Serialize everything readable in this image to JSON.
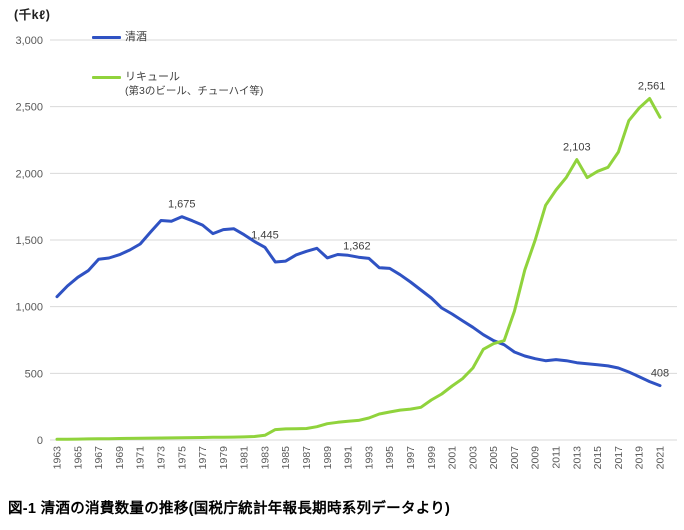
{
  "figure": {
    "unit_label": "(千kℓ)",
    "caption": "図-1 清酒の消費数量の推移(国税庁統計年報長期時系列データより)"
  },
  "legend": {
    "position": "inside-top-left",
    "items": [
      {
        "label": "清酒",
        "sublabel": "",
        "color": "#2f52c3"
      },
      {
        "label": "リキュール",
        "sublabel": "(第3のビール、チューハイ等)",
        "color": "#90d33c"
      }
    ]
  },
  "chart_data": {
    "type": "line",
    "title": "",
    "xlabel": "",
    "ylabel": "(千kℓ)",
    "ylim": [
      0,
      3000
    ],
    "grid": "horizontal",
    "grid_color": "#d9d9d9",
    "axis_text_color": "#595959",
    "data_label_color": "#404040",
    "y_ticks": [
      0,
      500,
      1000,
      1500,
      2000,
      2500,
      3000
    ],
    "y_tick_labels": [
      "0",
      "500",
      "1,000",
      "1,500",
      "2,000",
      "2,500",
      "3,000"
    ],
    "x": [
      1963,
      1964,
      1965,
      1966,
      1967,
      1968,
      1969,
      1970,
      1971,
      1972,
      1973,
      1974,
      1975,
      1976,
      1977,
      1978,
      1979,
      1980,
      1981,
      1982,
      1983,
      1984,
      1985,
      1986,
      1987,
      1988,
      1989,
      1990,
      1991,
      1992,
      1993,
      1994,
      1995,
      1996,
      1997,
      1998,
      1999,
      2000,
      2001,
      2002,
      2003,
      2004,
      2005,
      2006,
      2007,
      2008,
      2009,
      2010,
      2011,
      2012,
      2013,
      2014,
      2015,
      2016,
      2017,
      2018,
      2019,
      2020,
      2021
    ],
    "x_tick_labels": [
      "1963",
      "1965",
      "1967",
      "1969",
      "1971",
      "1973",
      "1975",
      "1977",
      "1979",
      "1981",
      "1983",
      "1985",
      "1987",
      "1989",
      "1991",
      "1993",
      "1995",
      "1997",
      "1999",
      "2001",
      "2003",
      "2005",
      "2007",
      "2009",
      "2011",
      "2013",
      "2015",
      "2017",
      "2019",
      "2021"
    ],
    "series": [
      {
        "name": "清酒",
        "key": "seishu",
        "color": "#2f52c3",
        "values": [
          1075,
          1155,
          1220,
          1270,
          1355,
          1365,
          1390,
          1425,
          1470,
          1560,
          1646,
          1640,
          1675,
          1645,
          1612,
          1548,
          1578,
          1585,
          1540,
          1489,
          1445,
          1335,
          1342,
          1388,
          1415,
          1438,
          1366,
          1391,
          1385,
          1371,
          1362,
          1292,
          1287,
          1240,
          1185,
          1125,
          1065,
          990,
          945,
          895,
          845,
          790,
          745,
          715,
          660,
          630,
          610,
          595,
          603,
          595,
          580,
          572,
          565,
          556,
          540,
          510,
          475,
          438,
          408
        ],
        "point_labels": [
          {
            "x": 1975,
            "text": "1,675",
            "dx": 0
          },
          {
            "x": 1983,
            "text": "1,445",
            "dx": 0
          },
          {
            "x": 1993,
            "text": "1,362",
            "dx": -12
          },
          {
            "x": 2021,
            "text": "408",
            "dx": 0
          }
        ]
      },
      {
        "name": "リキュール(第3のビール、チューハイ等)",
        "key": "liqueur",
        "color": "#90d33c",
        "values": [
          5,
          6,
          7,
          8,
          9,
          10,
          11,
          12,
          13,
          14,
          15,
          16,
          17,
          18,
          19,
          20,
          21,
          22,
          23,
          26,
          35,
          78,
          83,
          84,
          86,
          100,
          122,
          133,
          140,
          147,
          165,
          195,
          210,
          224,
          232,
          245,
          300,
          345,
          405,
          460,
          540,
          680,
          723,
          745,
          965,
          1275,
          1500,
          1760,
          1875,
          1970,
          2103,
          1968,
          2015,
          2045,
          2160,
          2395,
          2490,
          2561,
          2420
        ],
        "point_labels": [
          {
            "x": 2013,
            "text": "2,103",
            "dx": 0
          },
          {
            "x": 2020,
            "text": "2,561",
            "dx": 2
          }
        ]
      }
    ]
  }
}
